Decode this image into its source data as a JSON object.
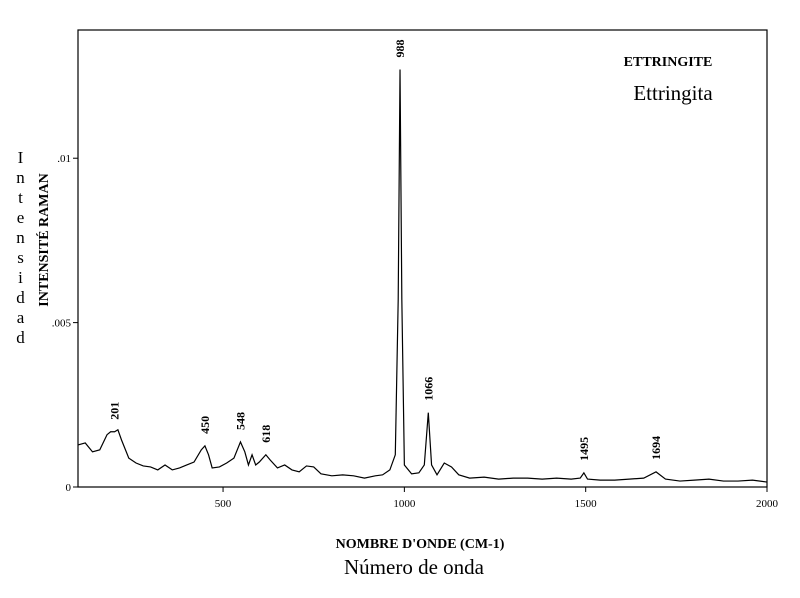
{
  "chart_data": {
    "type": "line",
    "title": "ETTRINGITE",
    "subtitle": "Ettringita",
    "x_label": "NOMBRE D'ONDE (CM-1)",
    "x_label_2": "Número de onda",
    "y_label": "INTENSITÉ RAMAN",
    "y_label_2": "Intensidad",
    "xlim": [
      100,
      2000
    ],
    "xticks": [
      500,
      1000,
      1500,
      2000
    ],
    "ylim": [
      0,
      0.0139
    ],
    "yticks": [
      0,
      {
        "value": 0.005,
        "label": ".005"
      },
      {
        "value": 0.01,
        "label": ".01"
      }
    ],
    "grid": false,
    "peak_labels": [
      201,
      450,
      548,
      618,
      988,
      1066,
      1495,
      1694
    ],
    "series": [
      {
        "color": "#000000",
        "x": [
          100,
          120,
          140,
          160,
          180,
          190,
          201,
          210,
          220,
          240,
          260,
          280,
          300,
          320,
          340,
          360,
          380,
          400,
          420,
          440,
          450,
          460,
          470,
          490,
          510,
          530,
          548,
          560,
          570,
          580,
          590,
          600,
          618,
          630,
          650,
          670,
          690,
          710,
          730,
          750,
          770,
          800,
          830,
          860,
          890,
          920,
          940,
          960,
          975,
          983,
          988,
          993,
          1000,
          1020,
          1040,
          1055,
          1066,
          1075,
          1090,
          1110,
          1130,
          1150,
          1180,
          1220,
          1260,
          1300,
          1340,
          1380,
          1420,
          1460,
          1485,
          1495,
          1505,
          1540,
          1580,
          1620,
          1660,
          1694,
          1720,
          1760,
          1800,
          1840,
          1880,
          1920,
          1960,
          2000
        ],
        "values": [
          0.00128,
          0.00134,
          0.00107,
          0.00113,
          0.00159,
          0.00168,
          0.00168,
          0.00174,
          0.00143,
          0.00088,
          0.00073,
          0.00064,
          0.00061,
          0.00052,
          0.00067,
          0.00052,
          0.00058,
          0.00067,
          0.00076,
          0.00113,
          0.00125,
          0.00098,
          0.00058,
          0.00061,
          0.00073,
          0.00088,
          0.00137,
          0.00107,
          0.00067,
          0.00098,
          0.00067,
          0.00076,
          0.00098,
          0.00082,
          0.00058,
          0.00067,
          0.00052,
          0.00046,
          0.00064,
          0.00061,
          0.0004,
          0.00034,
          0.00037,
          0.00034,
          0.00027,
          0.00034,
          0.00037,
          0.00052,
          0.00098,
          0.0057,
          0.0127,
          0.0057,
          0.00067,
          0.0004,
          0.00043,
          0.00067,
          0.00226,
          0.00067,
          0.00037,
          0.00073,
          0.00061,
          0.00037,
          0.00027,
          0.0003,
          0.00024,
          0.00027,
          0.00027,
          0.00024,
          0.00027,
          0.00024,
          0.00027,
          0.00043,
          0.00024,
          0.00021,
          0.00021,
          0.00024,
          0.00027,
          0.00046,
          0.00024,
          0.00018,
          0.00021,
          0.00024,
          0.00018,
          0.00018,
          0.00021,
          0.00015
        ]
      }
    ]
  }
}
